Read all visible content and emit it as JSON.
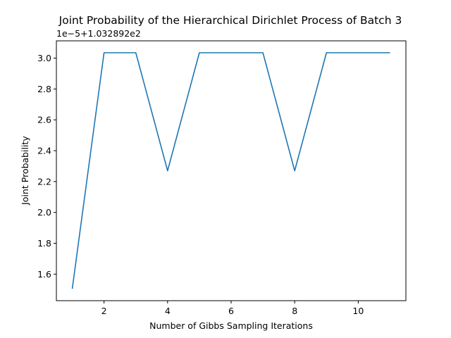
{
  "chart_data": {
    "type": "line",
    "title": "Joint Probability of the Hierarchical Dirichlet Process of Batch 3",
    "xlabel": "Number of Gibbs Sampling Iterations",
    "ylabel": "Joint Probability",
    "y_offset_label": "1e−5+1.032892e2",
    "x": [
      1,
      2,
      3,
      4,
      5,
      6,
      7,
      8,
      9,
      10,
      11
    ],
    "y": [
      1.505,
      3.035,
      3.035,
      2.27,
      3.035,
      3.035,
      3.035,
      2.27,
      3.035,
      3.035,
      3.035
    ],
    "xlim": [
      0.5,
      11.5
    ],
    "ylim": [
      1.428,
      3.112
    ],
    "x_ticks": [
      2,
      4,
      6,
      8,
      10
    ],
    "x_tick_labels": [
      "2",
      "4",
      "6",
      "8",
      "10"
    ],
    "y_ticks": [
      1.6,
      1.8,
      2.0,
      2.2,
      2.4,
      2.6,
      2.8,
      3.0
    ],
    "y_tick_labels": [
      "1.6",
      "1.8",
      "2.0",
      "2.2",
      "2.4",
      "2.6",
      "2.8",
      "3.0"
    ],
    "line_color": "#1f77b4",
    "grid": false,
    "legend": "none"
  }
}
